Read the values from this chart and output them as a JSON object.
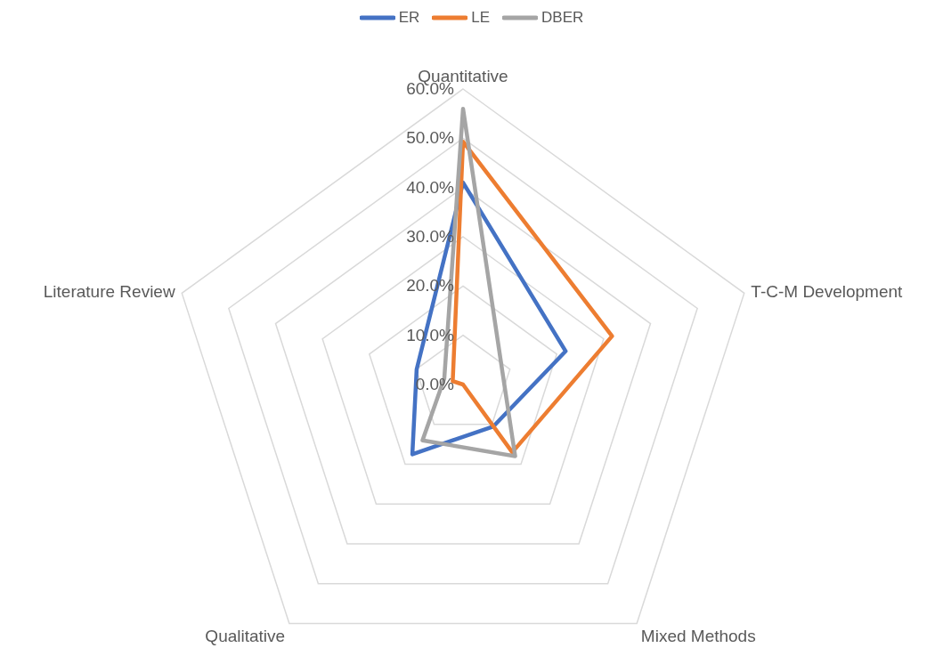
{
  "chart_data": {
    "type": "radar",
    "categories": [
      "Quantitative",
      "T-C-M Development",
      "Mixed Methods",
      "Qualitative",
      "Literature Review"
    ],
    "series": [
      {
        "name": "ER",
        "color": "#4472c4",
        "values": [
          41,
          21.9,
          10.5,
          17.5,
          9.9
        ]
      },
      {
        "name": "LE",
        "color": "#ed7d31",
        "values": [
          49.3,
          31.8,
          17,
          0,
          2.2
        ]
      },
      {
        "name": "DBER",
        "color": "#a5a5a5",
        "values": [
          56,
          8.4,
          18,
          14,
          4
        ]
      }
    ],
    "ylim": [
      0,
      60
    ],
    "yticks": [
      {
        "value": 0,
        "label": "0.0%"
      },
      {
        "value": 10,
        "label": "10.0%"
      },
      {
        "value": 20,
        "label": "20.0%"
      },
      {
        "value": 30,
        "label": "30.0%"
      },
      {
        "value": 40,
        "label": "40.0%"
      },
      {
        "value": 50,
        "label": "50.0%"
      },
      {
        "value": 60,
        "label": "60.0%"
      }
    ],
    "grid": true,
    "legend": "top",
    "marker": "none",
    "line_style": "solid"
  }
}
